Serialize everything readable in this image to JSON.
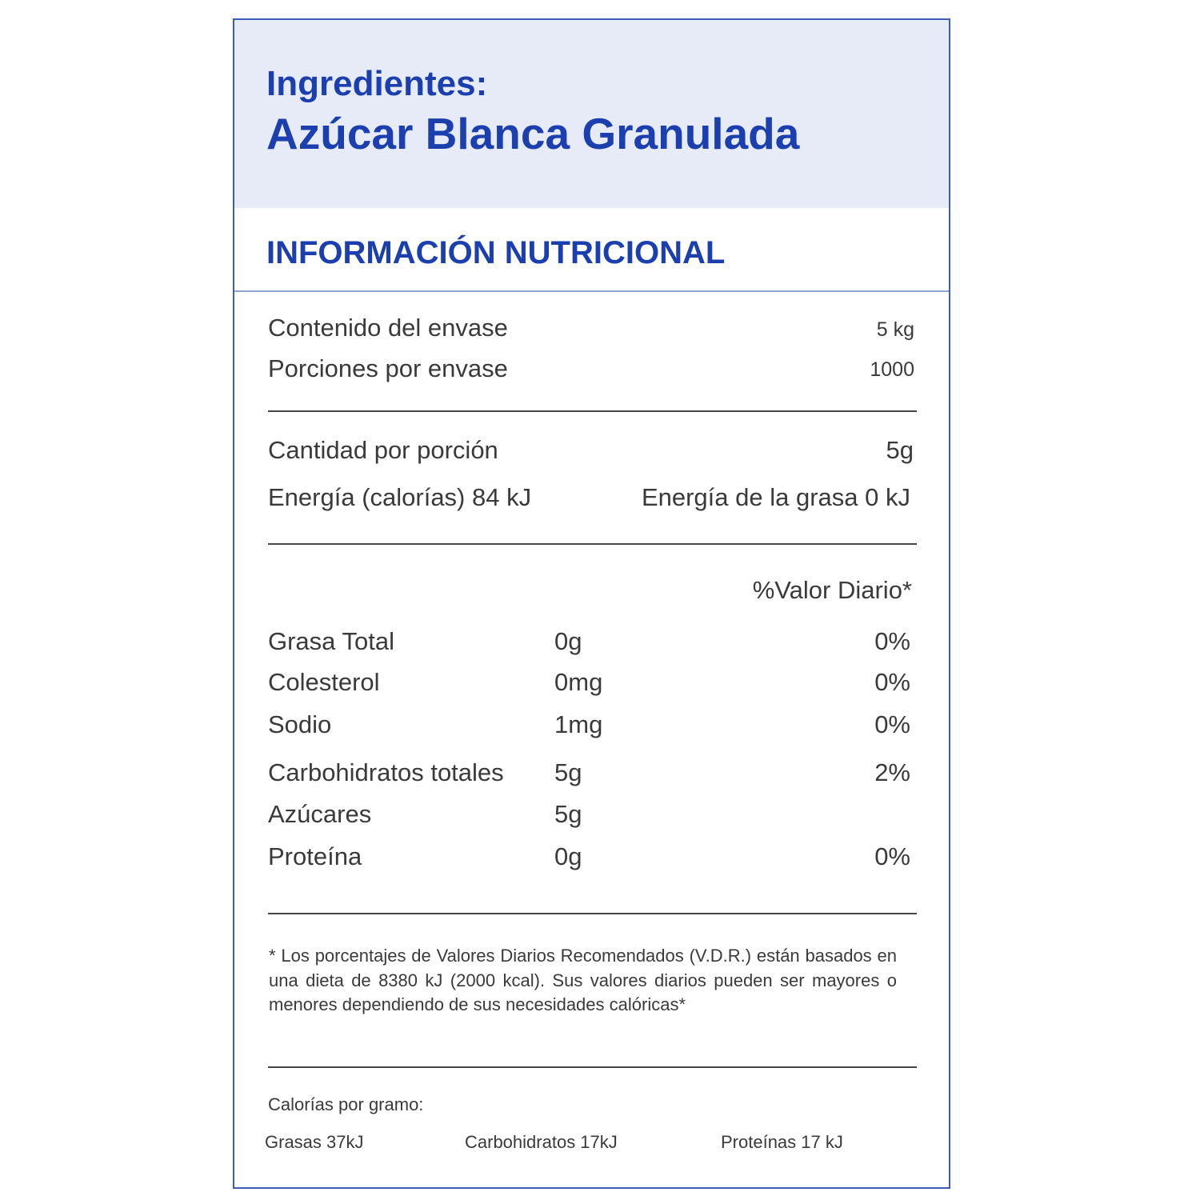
{
  "header": {
    "ingredients_label": "Ingredientes:",
    "ingredients": "Azúcar Blanca Granulada"
  },
  "section_title": "INFORMACIÓN NUTRICIONAL",
  "package": [
    [
      "Contenido del envase",
      "5 kg"
    ],
    [
      "Porciones por envase",
      "1000"
    ]
  ],
  "serving": {
    "label": "Cantidad por porción",
    "value": "5g"
  },
  "energy": [
    "Energía (calorías) 84 kJ",
    "Energía de la grasa 0 kJ"
  ],
  "daily_value_header": "%Valor Diario*",
  "nutrients": [
    [
      "Grasa Total",
      "0g",
      "0%"
    ],
    [
      "Colesterol",
      "0mg",
      "0%"
    ],
    [
      "Sodio",
      "1mg",
      "0%"
    ],
    [
      "Carbohidratos totales",
      "5g",
      "2%"
    ],
    [
      "Azúcares",
      "5g"
    ],
    [
      "Proteína",
      "0g",
      "0%"
    ]
  ],
  "footnote": "* Los porcentajes de Valores Diarios Recomendados (V.D.R.) están basados en una dieta de 8380 kJ (2000 kcal). Sus valores diarios pueden ser mayores o menores dependiendo de sus necesidades calóricas*",
  "calories_per_gram": {
    "title": "Calorías por gramo:",
    "items": [
      "Grasas 37kJ",
      "Carbohidratos 17kJ",
      "Proteínas 17 kJ"
    ]
  }
}
